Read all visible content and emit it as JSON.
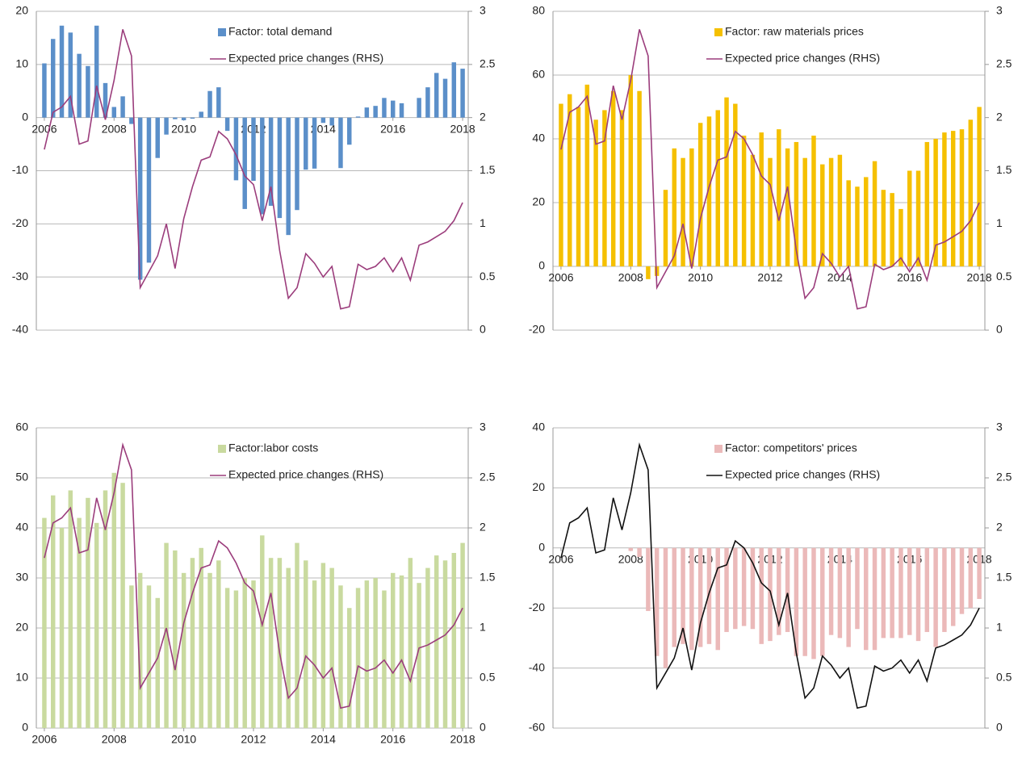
{
  "chart_data": [
    {
      "type": "bar",
      "x": [
        2006,
        2006.25,
        2006.5,
        2006.75,
        2007,
        2007.25,
        2007.5,
        2007.75,
        2008,
        2008.25,
        2008.5,
        2008.75,
        2009,
        2009.25,
        2009.5,
        2009.75,
        2010,
        2010.25,
        2010.5,
        2010.75,
        2011,
        2011.25,
        2011.5,
        2011.75,
        2012,
        2012.25,
        2012.5,
        2012.75,
        2013,
        2013.25,
        2013.5,
        2013.75,
        2014,
        2014.25,
        2014.5,
        2014.75,
        2015,
        2015.25,
        2015.5,
        2015.75,
        2016,
        2016.25,
        2016.5,
        2016.75,
        2017,
        2017.25,
        2017.5,
        2017.75,
        2018
      ],
      "xlim": [
        2005.77,
        2018.16
      ],
      "xticks": [
        2006,
        2008,
        2010,
        2012,
        2014,
        2016,
        2018
      ],
      "ylim": [
        -40,
        20
      ],
      "yticks": [
        -40,
        -30,
        -20,
        -10,
        0,
        10,
        20
      ],
      "y2lim": [
        0,
        3
      ],
      "y2ticks": [
        0,
        0.5,
        1,
        1.5,
        2,
        2.5,
        3
      ],
      "grid": true,
      "series": [
        {
          "name": "Factor: total demand",
          "type": "bar",
          "color": "#5b8fc9",
          "values": [
            10.2,
            14.8,
            17.3,
            16,
            12,
            9.7,
            17.3,
            6.5,
            2,
            4,
            -1.2,
            -30.5,
            -27.3,
            -7.6,
            -3.2,
            -0.3,
            -0.5,
            -0.2,
            1.1,
            5,
            5.7,
            -2.5,
            -11.8,
            -17.2,
            -11.9,
            -18.2,
            -16.6,
            -18.9,
            -22.1,
            -17.4,
            -9.8,
            -9.6,
            -1,
            -1.5,
            -9.5,
            -5.1,
            0.2,
            1.9,
            2.2,
            3.7,
            3.2,
            2.7,
            0,
            3.7,
            5.7,
            8.4,
            7.3,
            10.4,
            9.2
          ]
        },
        {
          "name": "Expected price changes (RHS)",
          "type": "line",
          "axis": "y2",
          "color": "#9b3d7c",
          "values": [
            1.7,
            2.05,
            2.1,
            2.2,
            1.75,
            1.78,
            2.3,
            1.98,
            2.35,
            2.83,
            2.58,
            0.4,
            0.55,
            0.7,
            1.0,
            0.58,
            1.05,
            1.35,
            1.6,
            1.63,
            1.87,
            1.8,
            1.65,
            1.45,
            1.37,
            1.03,
            1.35,
            0.75,
            0.3,
            0.4,
            0.72,
            0.63,
            0.5,
            0.6,
            0.2,
            0.22,
            0.62,
            0.57,
            0.6,
            0.68,
            0.55,
            0.68,
            0.47,
            0.8,
            0.83,
            0.88,
            0.93,
            1.03,
            1.2
          ]
        }
      ]
    },
    {
      "type": "bar",
      "x": [
        2006,
        2006.25,
        2006.5,
        2006.75,
        2007,
        2007.25,
        2007.5,
        2007.75,
        2008,
        2008.25,
        2008.5,
        2008.75,
        2009,
        2009.25,
        2009.5,
        2009.75,
        2010,
        2010.25,
        2010.5,
        2010.75,
        2011,
        2011.25,
        2011.5,
        2011.75,
        2012,
        2012.25,
        2012.5,
        2012.75,
        2013,
        2013.25,
        2013.5,
        2013.75,
        2014,
        2014.25,
        2014.5,
        2014.75,
        2015,
        2015.25,
        2015.5,
        2015.75,
        2016,
        2016.25,
        2016.5,
        2016.75,
        2017,
        2017.25,
        2017.5,
        2017.75,
        2018
      ],
      "xlim": [
        2005.77,
        2018.16
      ],
      "xticks": [
        2006,
        2008,
        2010,
        2012,
        2014,
        2016,
        2018
      ],
      "ylim": [
        -20,
        80
      ],
      "yticks": [
        -20,
        0,
        20,
        40,
        60,
        80
      ],
      "y2lim": [
        0,
        3
      ],
      "y2ticks": [
        0,
        0.5,
        1,
        1.5,
        2,
        2.5,
        3
      ],
      "grid": true,
      "series": [
        {
          "name": "Factor: raw materials prices",
          "type": "bar",
          "color": "#f5c000",
          "values": [
            51,
            54,
            50,
            57,
            46,
            49,
            55,
            49,
            60,
            55,
            -4,
            -3,
            24,
            37,
            34,
            37,
            45,
            47,
            49,
            53,
            51,
            41,
            35,
            42,
            34,
            43,
            37,
            39,
            34,
            41,
            32,
            34,
            35,
            27,
            25,
            28,
            33,
            24,
            23,
            18,
            30,
            30,
            39,
            40,
            42,
            42.5,
            43,
            46,
            50
          ]
        },
        {
          "name": "Expected price changes (RHS)",
          "type": "line",
          "axis": "y2",
          "color": "#9b3d7c",
          "values": [
            1.7,
            2.05,
            2.1,
            2.2,
            1.75,
            1.78,
            2.3,
            1.98,
            2.35,
            2.83,
            2.58,
            0.4,
            0.55,
            0.7,
            1.0,
            0.58,
            1.05,
            1.35,
            1.6,
            1.63,
            1.87,
            1.8,
            1.65,
            1.45,
            1.37,
            1.03,
            1.35,
            0.75,
            0.3,
            0.4,
            0.72,
            0.63,
            0.5,
            0.6,
            0.2,
            0.22,
            0.62,
            0.57,
            0.6,
            0.68,
            0.55,
            0.68,
            0.47,
            0.8,
            0.83,
            0.88,
            0.93,
            1.03,
            1.2
          ]
        }
      ]
    },
    {
      "type": "bar",
      "x": [
        2006,
        2006.25,
        2006.5,
        2006.75,
        2007,
        2007.25,
        2007.5,
        2007.75,
        2008,
        2008.25,
        2008.5,
        2008.75,
        2009,
        2009.25,
        2009.5,
        2009.75,
        2010,
        2010.25,
        2010.5,
        2010.75,
        2011,
        2011.25,
        2011.5,
        2011.75,
        2012,
        2012.25,
        2012.5,
        2012.75,
        2013,
        2013.25,
        2013.5,
        2013.75,
        2014,
        2014.25,
        2014.5,
        2014.75,
        2015,
        2015.25,
        2015.5,
        2015.75,
        2016,
        2016.25,
        2016.5,
        2016.75,
        2017,
        2017.25,
        2017.5,
        2017.75,
        2018
      ],
      "xlim": [
        2005.77,
        2018.16
      ],
      "xticks": [
        2006,
        2008,
        2010,
        2012,
        2014,
        2016,
        2018
      ],
      "ylim": [
        0,
        60
      ],
      "yticks": [
        0,
        10,
        20,
        30,
        40,
        50,
        60
      ],
      "y2lim": [
        0,
        3
      ],
      "y2ticks": [
        0,
        0.5,
        1,
        1.5,
        2,
        2.5,
        3
      ],
      "grid": true,
      "series": [
        {
          "name": "Factor:labor costs",
          "type": "bar",
          "color": "#c9da9f",
          "values": [
            42,
            46.5,
            40,
            47.5,
            42,
            46,
            41,
            47.5,
            51,
            49,
            28.5,
            31,
            28.5,
            26,
            37,
            35.5,
            31,
            34,
            36,
            31,
            33.5,
            28,
            27.5,
            30,
            29.5,
            38.5,
            34,
            34,
            32,
            37,
            33.5,
            29.5,
            33,
            32,
            28.5,
            24,
            28,
            29.5,
            30,
            27.5,
            31,
            30.5,
            34,
            29,
            32,
            34.5,
            33.5,
            35,
            37
          ]
        },
        {
          "name": "Expected price changes (RHS)",
          "type": "line",
          "axis": "y2",
          "color": "#9b3d7c",
          "values": [
            1.7,
            2.05,
            2.1,
            2.2,
            1.75,
            1.78,
            2.3,
            1.98,
            2.35,
            2.83,
            2.58,
            0.4,
            0.55,
            0.7,
            1.0,
            0.58,
            1.05,
            1.35,
            1.6,
            1.63,
            1.87,
            1.8,
            1.65,
            1.45,
            1.37,
            1.03,
            1.35,
            0.75,
            0.3,
            0.4,
            0.72,
            0.63,
            0.5,
            0.6,
            0.2,
            0.22,
            0.62,
            0.57,
            0.6,
            0.68,
            0.55,
            0.68,
            0.47,
            0.8,
            0.83,
            0.88,
            0.93,
            1.03,
            1.2
          ]
        }
      ]
    },
    {
      "type": "bar",
      "x": [
        2006,
        2006.25,
        2006.5,
        2006.75,
        2007,
        2007.25,
        2007.5,
        2007.75,
        2008,
        2008.25,
        2008.5,
        2008.75,
        2009,
        2009.25,
        2009.5,
        2009.75,
        2010,
        2010.25,
        2010.5,
        2010.75,
        2011,
        2011.25,
        2011.5,
        2011.75,
        2012,
        2012.25,
        2012.5,
        2012.75,
        2013,
        2013.25,
        2013.5,
        2013.75,
        2014,
        2014.25,
        2014.5,
        2014.75,
        2015,
        2015.25,
        2015.5,
        2015.75,
        2016,
        2016.25,
        2016.5,
        2016.75,
        2017,
        2017.25,
        2017.5,
        2017.75,
        2018
      ],
      "xlim": [
        2005.77,
        2018.16
      ],
      "xticks": [
        2006,
        2008,
        2010,
        2012,
        2014,
        2016,
        2018
      ],
      "ylim": [
        -60,
        40
      ],
      "yticks": [
        -60,
        -40,
        -20,
        0,
        20,
        40
      ],
      "y2lim": [
        0,
        3
      ],
      "y2ticks": [
        0,
        0.5,
        1,
        1.5,
        2,
        2.5,
        3
      ],
      "grid": true,
      "series": [
        {
          "name": "Factor: competitors' prices",
          "type": "bar",
          "color": "#ebb9b9",
          "values": [
            0,
            0,
            0,
            0,
            0,
            0,
            0,
            0,
            -1,
            -3,
            -21,
            -36,
            -40,
            -33,
            -32,
            -34,
            -33,
            -32,
            -34,
            -28,
            -27,
            -26,
            -27,
            -32,
            -31,
            -29,
            -28,
            -36,
            -36,
            -37,
            -36,
            -29,
            -30,
            -33,
            -27,
            -34,
            -34,
            -30,
            -30,
            -30,
            -29,
            -31,
            -28,
            -33,
            -28,
            -26,
            -22,
            -20,
            -17
          ]
        },
        {
          "name": "Expected price changes (RHS)",
          "type": "line",
          "axis": "y2",
          "color": "#111111",
          "values": [
            1.7,
            2.05,
            2.1,
            2.2,
            1.75,
            1.78,
            2.3,
            1.98,
            2.35,
            2.83,
            2.58,
            0.4,
            0.55,
            0.7,
            1.0,
            0.58,
            1.05,
            1.35,
            1.6,
            1.63,
            1.87,
            1.8,
            1.65,
            1.45,
            1.37,
            1.03,
            1.35,
            0.75,
            0.3,
            0.4,
            0.72,
            0.63,
            0.5,
            0.6,
            0.2,
            0.22,
            0.62,
            0.57,
            0.6,
            0.68,
            0.55,
            0.68,
            0.47,
            0.8,
            0.83,
            0.88,
            0.93,
            1.03,
            1.2
          ]
        }
      ]
    }
  ]
}
